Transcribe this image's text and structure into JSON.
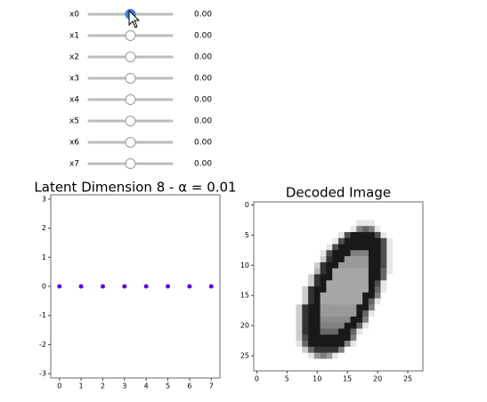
{
  "sliders": [
    {
      "label": "x0",
      "value": 0,
      "value_label": "0.00",
      "min": -3,
      "max": 3,
      "active": true
    },
    {
      "label": "x1",
      "value": 0,
      "value_label": "0.00",
      "min": -3,
      "max": 3
    },
    {
      "label": "x2",
      "value": 0,
      "value_label": "0.00",
      "min": -3,
      "max": 3
    },
    {
      "label": "x3",
      "value": 0,
      "value_label": "0.00",
      "min": -3,
      "max": 3
    },
    {
      "label": "x4",
      "value": 0,
      "value_label": "0.00",
      "min": -3,
      "max": 3
    },
    {
      "label": "x5",
      "value": 0,
      "value_label": "0.00",
      "min": -3,
      "max": 3
    },
    {
      "label": "x6",
      "value": 0,
      "value_label": "0.00",
      "min": -3,
      "max": 3
    },
    {
      "label": "x7",
      "value": 0,
      "value_label": "0.00",
      "min": -3,
      "max": 3
    }
  ],
  "chart_data": [
    {
      "type": "scatter",
      "title": "Latent Dimension 8 - α = 0.01",
      "x": [
        0,
        1,
        2,
        3,
        4,
        5,
        6,
        7
      ],
      "values": [
        0,
        0,
        0,
        0,
        0,
        0,
        0,
        0
      ],
      "color": "#5a00e8",
      "xlim": [
        -0.4,
        7.4
      ],
      "xticks": [
        0,
        1,
        2,
        3,
        4,
        5,
        6,
        7
      ],
      "ylim": [
        -3.15,
        3.15
      ],
      "yticks": [
        -3,
        -2,
        -1,
        0,
        1,
        2,
        3
      ]
    },
    {
      "type": "image",
      "title": "Decoded Image",
      "cmap": "gray_r",
      "xlim": [
        -0.5,
        27.5
      ],
      "xticks": [
        0,
        5,
        10,
        15,
        20,
        25
      ],
      "ylim": [
        27.5,
        -0.5
      ],
      "yticks": [
        0,
        5,
        10,
        15,
        20,
        25
      ],
      "values": [
        [
          0,
          0,
          0,
          0,
          0,
          0,
          0,
          0,
          0,
          0,
          0,
          0,
          0,
          0,
          0,
          0,
          0,
          0,
          0,
          0,
          0,
          0,
          0,
          0,
          0,
          0,
          0,
          0
        ],
        [
          0,
          0,
          0,
          0,
          0,
          0,
          0,
          0,
          0,
          0,
          0,
          0,
          0,
          0,
          0,
          0,
          0,
          0,
          0,
          0,
          0,
          0,
          0,
          0,
          0,
          0,
          0,
          0
        ],
        [
          0,
          0,
          0,
          0,
          0,
          0,
          0,
          0,
          0,
          0,
          0,
          0,
          0,
          0,
          0,
          0,
          0,
          0,
          0,
          0,
          0,
          0,
          0,
          0,
          0,
          0,
          0,
          0
        ],
        [
          0,
          0,
          0,
          0,
          0,
          0,
          0,
          0,
          0,
          0,
          0,
          0,
          0,
          0,
          0,
          0,
          0,
          0.1,
          0.1,
          0.1,
          0,
          0,
          0,
          0,
          0,
          0,
          0,
          0
        ],
        [
          0,
          0,
          0,
          0,
          0,
          0,
          0,
          0,
          0,
          0,
          0,
          0,
          0,
          0,
          0,
          0,
          0.1,
          0.5,
          0.6,
          0.5,
          0.1,
          0,
          0,
          0,
          0,
          0,
          0,
          0
        ],
        [
          0,
          0,
          0,
          0,
          0,
          0,
          0,
          0,
          0,
          0,
          0,
          0,
          0,
          0,
          0.1,
          0.7,
          0.9,
          0.9,
          0.9,
          0.9,
          0.7,
          0.1,
          0,
          0,
          0,
          0,
          0,
          0
        ],
        [
          0,
          0,
          0,
          0,
          0,
          0,
          0,
          0,
          0,
          0,
          0,
          0,
          0,
          0.1,
          0.7,
          0.9,
          0.9,
          0.9,
          0.9,
          0.9,
          0.9,
          0.7,
          0.1,
          0,
          0,
          0,
          0,
          0
        ],
        [
          0,
          0,
          0,
          0,
          0,
          0,
          0,
          0,
          0,
          0,
          0,
          0,
          0.1,
          0.7,
          0.9,
          0.9,
          0.9,
          0.9,
          0.9,
          0.9,
          0.9,
          0.7,
          0.1,
          0,
          0,
          0,
          0,
          0
        ],
        [
          0,
          0,
          0,
          0,
          0,
          0,
          0,
          0,
          0,
          0,
          0,
          0.1,
          0.7,
          0.9,
          0.9,
          0.9,
          0.5,
          0.5,
          0.5,
          0.9,
          0.9,
          0.7,
          0.1,
          0,
          0,
          0,
          0,
          0
        ],
        [
          0,
          0,
          0,
          0,
          0,
          0,
          0,
          0,
          0,
          0,
          0,
          0.2,
          0.8,
          0.9,
          0.9,
          0.4,
          0.4,
          0.4,
          0.4,
          0.9,
          0.9,
          0.7,
          0.1,
          0,
          0,
          0,
          0,
          0
        ],
        [
          0,
          0,
          0,
          0,
          0,
          0,
          0,
          0,
          0,
          0,
          0.2,
          0.8,
          0.9,
          0.9,
          0.4,
          0.4,
          0.4,
          0.4,
          0.4,
          0.9,
          0.9,
          0.7,
          0.1,
          0,
          0,
          0,
          0,
          0
        ],
        [
          0,
          0,
          0,
          0,
          0,
          0,
          0,
          0,
          0,
          0,
          0.3,
          0.8,
          0.9,
          0.35,
          0.35,
          0.35,
          0.35,
          0.35,
          0.35,
          0.9,
          0.9,
          0.6,
          0.1,
          0,
          0,
          0,
          0,
          0
        ],
        [
          0,
          0,
          0,
          0,
          0,
          0,
          0,
          0,
          0,
          0.2,
          0.8,
          0.9,
          0.9,
          0.35,
          0.35,
          0.35,
          0.35,
          0.35,
          0.35,
          0.9,
          0.9,
          0.6,
          0,
          0,
          0,
          0,
          0,
          0
        ],
        [
          0,
          0,
          0,
          0,
          0,
          0,
          0,
          0,
          0,
          0.2,
          0.8,
          0.9,
          0.35,
          0.35,
          0.35,
          0.35,
          0.35,
          0.35,
          0.35,
          0.9,
          0.7,
          0.1,
          0,
          0,
          0,
          0,
          0,
          0
        ],
        [
          0,
          0,
          0,
          0,
          0,
          0,
          0,
          0,
          0.2,
          0.8,
          0.9,
          0.9,
          0.35,
          0.35,
          0.35,
          0.35,
          0.35,
          0.35,
          0.35,
          0.9,
          0.6,
          0.1,
          0,
          0,
          0,
          0,
          0,
          0
        ],
        [
          0,
          0,
          0,
          0,
          0,
          0,
          0,
          0,
          0.2,
          0.8,
          0.9,
          0.35,
          0.35,
          0.35,
          0.35,
          0.35,
          0.35,
          0.35,
          0.9,
          0.9,
          0.5,
          0,
          0,
          0,
          0,
          0,
          0,
          0
        ],
        [
          0,
          0,
          0,
          0,
          0,
          0,
          0,
          0,
          0.2,
          0.8,
          0.9,
          0.35,
          0.35,
          0.35,
          0.35,
          0.35,
          0.35,
          0.35,
          0.9,
          0.6,
          0.1,
          0,
          0,
          0,
          0,
          0,
          0,
          0
        ],
        [
          0,
          0,
          0,
          0,
          0,
          0,
          0,
          0.2,
          0.8,
          0.9,
          0.9,
          0.4,
          0.4,
          0.4,
          0.4,
          0.4,
          0.4,
          0.9,
          0.9,
          0.5,
          0,
          0,
          0,
          0,
          0,
          0,
          0,
          0
        ],
        [
          0,
          0,
          0,
          0,
          0,
          0,
          0,
          0.2,
          0.8,
          0.9,
          0.9,
          0.4,
          0.4,
          0.4,
          0.4,
          0.4,
          0.4,
          0.9,
          0.6,
          0.1,
          0,
          0,
          0,
          0,
          0,
          0,
          0,
          0
        ],
        [
          0,
          0,
          0,
          0,
          0,
          0,
          0,
          0.2,
          0.8,
          0.9,
          0.9,
          0.45,
          0.45,
          0.45,
          0.45,
          0.45,
          0.9,
          0.9,
          0.5,
          0,
          0,
          0,
          0,
          0,
          0,
          0,
          0,
          0
        ],
        [
          0,
          0,
          0,
          0,
          0,
          0,
          0,
          0.2,
          0.8,
          0.9,
          0.9,
          0.5,
          0.5,
          0.5,
          0.5,
          0.9,
          0.9,
          0.6,
          0.1,
          0,
          0,
          0,
          0,
          0,
          0,
          0,
          0,
          0
        ],
        [
          0,
          0,
          0,
          0,
          0,
          0,
          0,
          0.2,
          0.8,
          0.9,
          0.9,
          0.6,
          0.6,
          0.6,
          0.9,
          0.9,
          0.6,
          0.1,
          0,
          0,
          0,
          0,
          0,
          0,
          0,
          0,
          0,
          0
        ],
        [
          0,
          0,
          0,
          0,
          0,
          0,
          0,
          0.2,
          0.7,
          0.9,
          0.9,
          0.9,
          0.9,
          0.9,
          0.9,
          0.9,
          0.5,
          0,
          0,
          0,
          0,
          0,
          0,
          0,
          0,
          0,
          0,
          0
        ],
        [
          0,
          0,
          0,
          0,
          0,
          0,
          0,
          0.1,
          0.6,
          0.9,
          0.9,
          0.9,
          0.9,
          0.9,
          0.9,
          0.5,
          0.1,
          0,
          0,
          0,
          0,
          0,
          0,
          0,
          0,
          0,
          0,
          0
        ],
        [
          0,
          0,
          0,
          0,
          0,
          0,
          0,
          0,
          0.2,
          0.6,
          0.8,
          0.8,
          0.8,
          0.8,
          0.5,
          0,
          0,
          0,
          0,
          0,
          0,
          0,
          0,
          0,
          0,
          0,
          0,
          0
        ],
        [
          0,
          0,
          0,
          0,
          0,
          0,
          0,
          0,
          0,
          0.1,
          0.4,
          0.5,
          0.4,
          0.1,
          0,
          0,
          0,
          0,
          0,
          0,
          0,
          0,
          0,
          0,
          0,
          0,
          0,
          0
        ],
        [
          0,
          0,
          0,
          0,
          0,
          0,
          0,
          0,
          0,
          0,
          0,
          0,
          0,
          0,
          0,
          0,
          0,
          0,
          0,
          0,
          0,
          0,
          0,
          0,
          0,
          0,
          0,
          0
        ],
        [
          0,
          0,
          0,
          0,
          0,
          0,
          0,
          0,
          0,
          0,
          0,
          0,
          0,
          0,
          0,
          0,
          0,
          0,
          0,
          0,
          0,
          0,
          0,
          0,
          0,
          0,
          0,
          0
        ]
      ]
    }
  ]
}
